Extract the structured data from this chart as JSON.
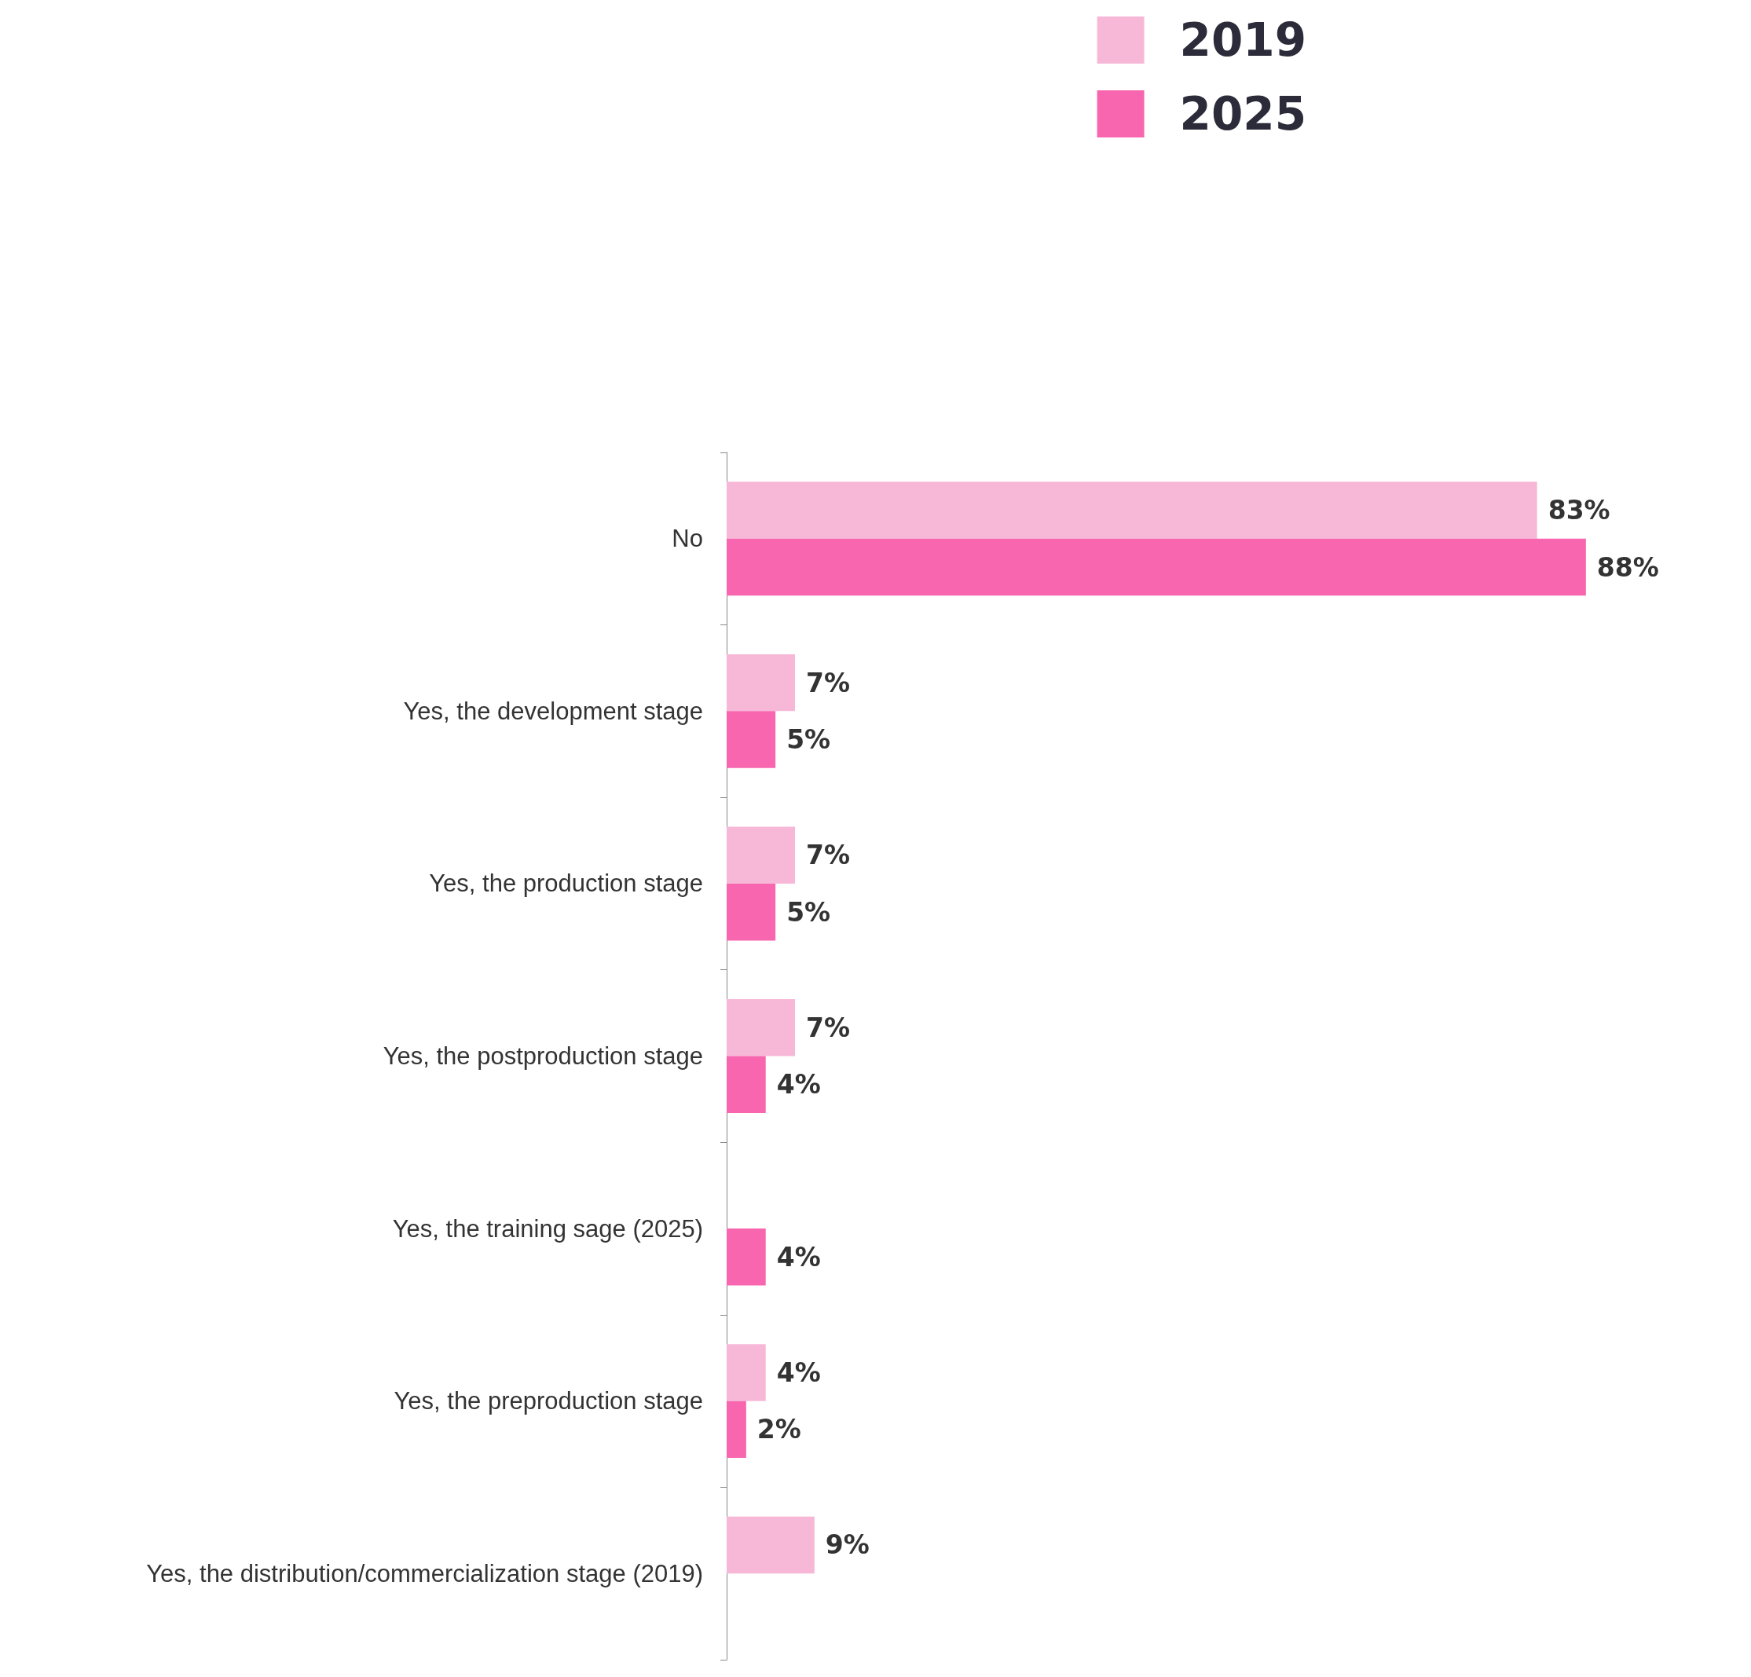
{
  "chart_data": {
    "type": "bar",
    "orientation": "horizontal",
    "legend": "top right",
    "categories": [
      "No",
      "Yes, the development stage",
      "Yes, the production stage",
      "Yes, the postproduction stage",
      "Yes, the training sage (2025)",
      "Yes, the preproduction stage",
      "Yes, the distribution/commercialization stage (2019)"
    ],
    "series": [
      {
        "name": "2019",
        "color": "#f7b8d8",
        "values": [
          83,
          7,
          7,
          7,
          null,
          4,
          9
        ],
        "value_labels": [
          "83%",
          "7%",
          "7%",
          "7%",
          null,
          "4%",
          "9%"
        ]
      },
      {
        "name": "2025",
        "color": "#f766ae",
        "values": [
          88,
          5,
          5,
          4,
          4,
          2,
          null
        ],
        "value_labels": [
          "88%",
          "5%",
          "5%",
          "4%",
          "4%",
          "2%",
          null
        ]
      }
    ]
  }
}
